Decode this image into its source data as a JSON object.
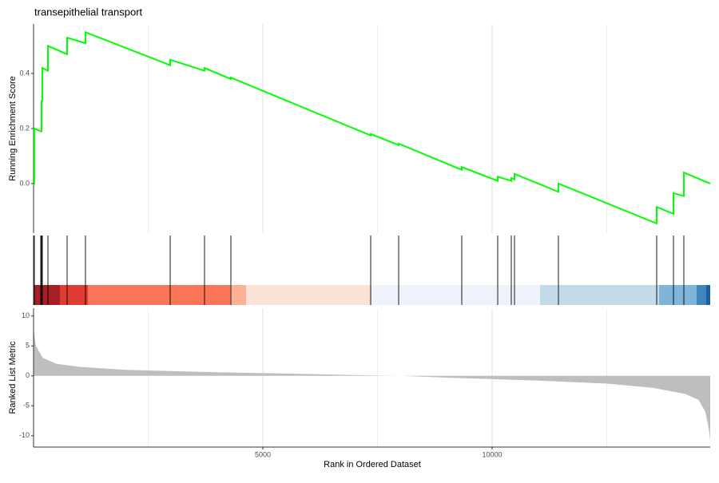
{
  "chart_data": [
    {
      "type": "line",
      "title": "transepithelial transport",
      "ylabel": "Running Enrichment Score",
      "xlim": [
        0,
        14756
      ],
      "ylim": [
        -0.18,
        0.58
      ],
      "yticks": [
        {
          "value": 0,
          "label": "0.0"
        },
        0.2,
        0.4
      ],
      "x": [
        0,
        17,
        17,
        157,
        174,
        174,
        192,
        192,
        314,
        314,
        732,
        732,
        1132,
        1132,
        2979,
        2979,
        3728,
        3728,
        4303,
        4303,
        7352,
        7352,
        7962,
        7962,
        9338,
        9338,
        10122,
        10122,
        10418,
        10418,
        10488,
        10488,
        11446,
        11446,
        13589,
        13589,
        13955,
        13955,
        14181,
        14181,
        14756
      ],
      "series": [
        {
          "color": "#00ff00",
          "values": [
            0,
            0,
            0.2,
            0.19,
            0.19,
            0.3,
            0.3,
            0.42,
            0.41,
            0.5,
            0.47,
            0.53,
            0.51,
            0.55,
            0.43,
            0.45,
            0.41,
            0.42,
            0.38,
            0.385,
            0.175,
            0.18,
            0.14,
            0.145,
            0.05,
            0.06,
            0.01,
            0.025,
            0.01,
            0.02,
            0.015,
            0.035,
            -0.03,
            0,
            -0.145,
            -0.085,
            -0.11,
            -0.035,
            -0.045,
            0.04,
            0
          ]
        }
      ]
    },
    {
      "type": "rug",
      "xlim": [
        0,
        14756
      ],
      "hits": [
        17,
        157,
        174,
        192,
        314,
        732,
        1132,
        2979,
        3728,
        4303,
        7352,
        7962,
        9338,
        10122,
        10418,
        10488,
        11446,
        13589,
        13955,
        14181
      ],
      "bands": {
        "edges": [
          0,
          575,
          1185,
          4286,
          4634,
          7369,
          11045,
          13641,
          14460,
          14669,
          14756
        ],
        "colors": [
          "#a81e25",
          "#e03b32",
          "#fb7558",
          "#fcb095",
          "#fde3d7",
          "#eef3fb",
          "#c3dbe8",
          "#7fb5d8",
          "#3f86c0",
          "#1f5fa0"
        ]
      }
    },
    {
      "type": "area",
      "xlabel": "Rank in Ordered Dataset",
      "ylabel": "Ranked List Metric",
      "color": "#bebebe",
      "xlim": [
        0,
        14756
      ],
      "ylim": [
        -11.9,
        11.3
      ],
      "xticks": [
        5000,
        10000
      ],
      "xminor": [
        2500,
        7500,
        12500
      ],
      "yticks": [
        10,
        5,
        0,
        -5,
        -10
      ],
      "x": [
        0,
        50,
        200,
        500,
        1000,
        2000,
        4000,
        6000,
        7500,
        8000,
        9000,
        11000,
        12500,
        13500,
        14200,
        14500,
        14650,
        14730,
        14756
      ],
      "values": [
        8,
        5,
        3,
        2,
        1.5,
        1,
        0.6,
        0.3,
        0.05,
        0,
        -0.3,
        -0.8,
        -1.3,
        -2,
        -3,
        -4,
        -6,
        -9,
        -11
      ]
    }
  ]
}
